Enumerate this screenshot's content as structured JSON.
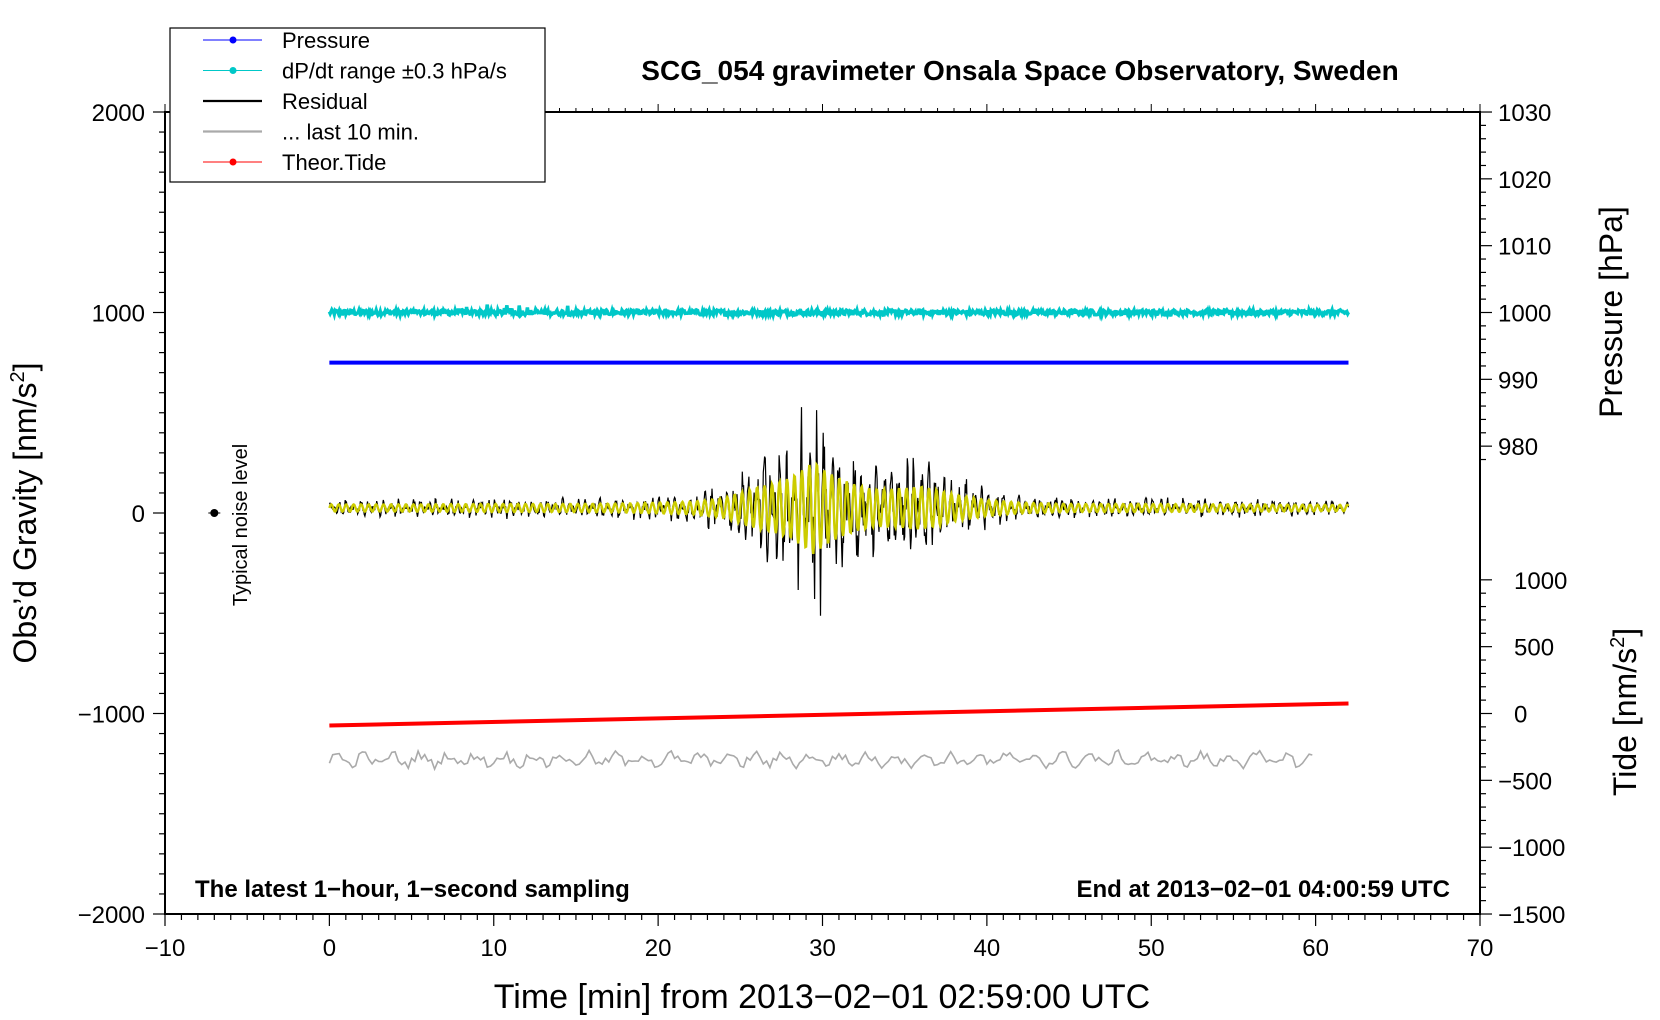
{
  "chart_data": {
    "type": "line",
    "title": "SCG_054 gravimeter Onsala Space Observatory, Sweden",
    "xlabel": "Time [min] from 2013−02−01 02:59:00 UTC",
    "ylabel_left_main": "Obs’d Gravity [nm/s",
    "ylabel_left_sup": "2",
    "ylabel_left_close": "]",
    "ylabel_pressure": "Pressure [hPa]",
    "ylabel_tide_main": "Tide [nm/s",
    "ylabel_tide_sup": "2",
    "ylabel_tide_close": "]",
    "xlim": [
      -10,
      70
    ],
    "ylim_left": [
      -2000,
      2000
    ],
    "x_ticks": [
      -10,
      0,
      10,
      20,
      30,
      40,
      50,
      60,
      70
    ],
    "x_tick_labels": [
      "−10",
      "0",
      "10",
      "20",
      "30",
      "40",
      "50",
      "60",
      "70"
    ],
    "y_left_ticks": [
      -2000,
      -1000,
      0,
      1000,
      2000
    ],
    "y_left_tick_labels": [
      "−2000",
      "−1000",
      "0",
      "1000",
      "2000"
    ],
    "pressure_axis": {
      "ticks": [
        980,
        990,
        1000,
        1010,
        1020,
        1030
      ],
      "tick_labels": [
        "980",
        "990",
        "1000",
        "1010",
        "1020",
        "1030"
      ],
      "ref_value": 1000,
      "ref_gravity": 1000,
      "gravity_per_unit": 33.33
    },
    "tide_axis": {
      "ticks": [
        -1500,
        -1000,
        -500,
        0,
        500,
        1000
      ],
      "tick_labels": [
        "−1500",
        "−1000",
        "−500",
        "0",
        "500",
        "1000"
      ],
      "ref_value": 0,
      "ref_gravity": -1000,
      "gravity_per_unit": 0.6667
    },
    "annotation_bottom_left": "The latest 1−hour, 1−second sampling",
    "annotation_bottom_right": "End at 2013−02−01 04:00:59 UTC",
    "noise_label": "Typical noise level",
    "noise_marker": {
      "x": -7,
      "y": 0,
      "err": 40
    },
    "legend_position": "top-left",
    "legend": [
      {
        "label": "Pressure",
        "color": "#0000ff",
        "style": "line-dot"
      },
      {
        "label": "dP/dt range ±0.3 hPa/s",
        "color": "#00c8c8",
        "style": "line-dot"
      },
      {
        "label": "Residual",
        "color": "#000000",
        "style": "line"
      },
      {
        "label": "... last 10 min.",
        "color": "#aaaaaa",
        "style": "line"
      },
      {
        "label": "Theor.Tide",
        "color": "#ff0000",
        "style": "line-dot"
      }
    ],
    "series": [
      {
        "name": "Pressure",
        "color": "#0000ff",
        "x": [
          0,
          62
        ],
        "pressure_hPa": [
          992.5,
          992.5
        ]
      },
      {
        "name": "dP/dt range ±0.3 hPa/s",
        "color": "#00c8c8",
        "x": [
          0,
          62
        ],
        "gravity_level": 1000
      },
      {
        "name": "Theor.Tide",
        "color": "#ff0000",
        "x": [
          0,
          62
        ],
        "tide_nm_s2": [
          -90,
          75
        ]
      },
      {
        "name": "Residual",
        "color": "#000000",
        "x_range": [
          0,
          62
        ],
        "baseline": 25,
        "envelope_minutes": [
          0,
          5,
          10,
          15,
          18,
          20,
          22,
          24,
          25,
          26,
          27,
          28,
          29,
          29.5,
          30,
          31,
          32,
          33,
          34,
          35,
          36,
          37,
          38,
          40,
          42,
          45,
          50,
          55,
          62
        ],
        "envelope_amplitude": [
          40,
          40,
          45,
          45,
          50,
          60,
          70,
          110,
          170,
          230,
          270,
          330,
          450,
          520,
          430,
          330,
          260,
          210,
          210,
          220,
          240,
          200,
          150,
          90,
          60,
          45,
          45,
          40,
          35
        ]
      },
      {
        "name": "... last 10 min.",
        "color": "#aaaaaa",
        "x_range": [
          0,
          60
        ],
        "gravity_level": -1230,
        "amplitude": 50
      }
    ],
    "filtered_trace_color": "#cccc00",
    "grid": false
  }
}
